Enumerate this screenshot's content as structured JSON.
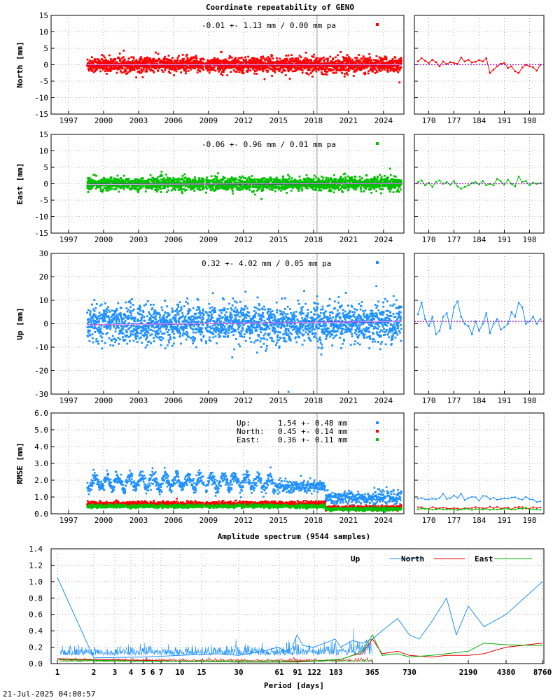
{
  "title": "Coordinate repeatability of GENO",
  "timestamp": "21-Jul-2025 04:00:57",
  "years": [
    "1997",
    "2000",
    "2003",
    "2006",
    "2009",
    "2012",
    "2015",
    "2018",
    "2021",
    "2024"
  ],
  "doys": [
    "170",
    "177",
    "184",
    "191",
    "198"
  ],
  "chart_data": [
    {
      "type": "scatter",
      "ylabel": "North [mm]",
      "ylim": [
        -15,
        15
      ],
      "yticks": [
        -15,
        -10,
        -5,
        0,
        5,
        10,
        15
      ],
      "stats": "-0.01 +- 1.13 mm /  0.00 mm pa",
      "color": "#ff0000",
      "start_year": 1998.6,
      "end_year": 2025.55,
      "sigma": 1.13,
      "trend": [
        [
          1998.6,
          -0.01
        ],
        [
          2025.55,
          -0.01
        ]
      ],
      "recent": {
        "doy": [
          167,
          168,
          169,
          170,
          171,
          172,
          173,
          174,
          175,
          176,
          177,
          178,
          179,
          180,
          181,
          182,
          183,
          184,
          185,
          186,
          187,
          188,
          189,
          190,
          191,
          192,
          193,
          194,
          195,
          196,
          197,
          198,
          199,
          200,
          201
        ],
        "values": [
          1.0,
          2.0,
          1.2,
          0.5,
          1.5,
          0.8,
          -0.5,
          1.0,
          0.2,
          0.8,
          0.5,
          0.3,
          2.2,
          1.0,
          1.5,
          0.7,
          0.9,
          1.4,
          1.0,
          2.0,
          -2.5,
          -1.5,
          -0.5,
          0.3,
          0.5,
          -1.0,
          -0.5,
          -2.0,
          -2.5,
          -0.8,
          0.0,
          -0.5,
          -0.8,
          -1.8,
          0.0
        ],
        "trend": 0.0
      }
    },
    {
      "type": "scatter",
      "ylabel": "East [mm]",
      "ylim": [
        -15,
        15
      ],
      "yticks": [
        -15,
        -10,
        -5,
        0,
        5,
        10,
        15
      ],
      "stats": "-0.06 +- 0.96 mm /  0.01 mm pa",
      "color": "#00c000",
      "start_year": 1998.6,
      "end_year": 2025.55,
      "sigma": 0.96,
      "trend": [
        [
          1998.6,
          -0.2
        ],
        [
          2025.55,
          0.1
        ]
      ],
      "recent": {
        "doy": [
          167,
          168,
          169,
          170,
          171,
          172,
          173,
          174,
          175,
          176,
          177,
          178,
          179,
          180,
          181,
          182,
          183,
          184,
          185,
          186,
          187,
          188,
          189,
          190,
          191,
          192,
          193,
          194,
          195,
          196,
          197,
          198,
          199,
          200,
          201
        ],
        "values": [
          0.5,
          1.0,
          -0.5,
          0.3,
          -1.0,
          0.5,
          1.0,
          0.0,
          0.5,
          -0.3,
          0.8,
          -0.8,
          -1.5,
          -1.0,
          -0.5,
          0.2,
          0.5,
          -0.2,
          0.8,
          -0.5,
          0.0,
          -0.5,
          1.5,
          0.8,
          -0.3,
          1.2,
          0.0,
          -0.8,
          2.2,
          0.5,
          0.8,
          -0.5,
          0.3,
          0.0,
          0.2
        ],
        "trend": 0.0
      }
    },
    {
      "type": "scatter",
      "ylabel": "Up [mm]",
      "ylim": [
        -30,
        30
      ],
      "yticks": [
        -30,
        -20,
        -10,
        0,
        10,
        20,
        30
      ],
      "stats": " 0.32 +- 4.02 mm /  0.05 mm pa",
      "color": "#1e90ff",
      "start_year": 1998.6,
      "end_year": 2025.55,
      "sigma": 4.02,
      "trend": [
        [
          1998.6,
          -0.5
        ],
        [
          2025.55,
          1.0
        ]
      ],
      "recent": {
        "doy": [
          167,
          168,
          169,
          170,
          171,
          172,
          173,
          174,
          175,
          176,
          177,
          178,
          179,
          180,
          181,
          182,
          183,
          184,
          185,
          186,
          187,
          188,
          189,
          190,
          191,
          192,
          193,
          194,
          195,
          196,
          197,
          198,
          199,
          200,
          201
        ],
        "values": [
          4.0,
          9.0,
          2.0,
          -1.0,
          3.0,
          -4.5,
          -3.0,
          3.0,
          4.5,
          -2.0,
          7.0,
          9.5,
          3.0,
          0.0,
          -1.0,
          -4.5,
          1.0,
          -3.0,
          0.0,
          4.5,
          -4.0,
          0.0,
          2.0,
          -2.5,
          -1.5,
          0.0,
          5.0,
          3.0,
          9.0,
          7.0,
          0.0,
          1.0,
          3.0,
          0.0,
          2.0
        ],
        "trend": 1.0
      }
    },
    {
      "type": "scatter",
      "ylabel": "RMSE [mm]",
      "ylim": [
        0,
        6
      ],
      "yticks": [
        "0.0",
        "1.0",
        "2.0",
        "3.0",
        "4.0",
        "5.0",
        "6.0"
      ],
      "legend": [
        {
          "label": "Up:",
          "value": "1.54 +- 0.48 mm",
          "color": "#1e90ff"
        },
        {
          "label": "North:",
          "value": "0.45 +- 0.14 mm",
          "color": "#ff0000"
        },
        {
          "label": "East:",
          "value": "0.36 +- 0.11 mm",
          "color": "#00c000"
        }
      ]
    },
    {
      "type": "line",
      "title": "Amplitude spectrum (9544 samples)",
      "xlabel": "Period [days]",
      "xscale": "reciprocal",
      "xticks": [
        "1",
        "2",
        "3",
        "4",
        "5",
        "6",
        "7",
        "10",
        "15",
        "30",
        "61",
        "91",
        "122",
        "183",
        "365",
        "730",
        "2190",
        "4380",
        "8760"
      ],
      "ylim": [
        0,
        1.4
      ],
      "yticks": [
        "0.0",
        "0.2",
        "0.4",
        "0.6",
        "0.8",
        "1.0",
        "1.2",
        "1.4"
      ],
      "series": [
        {
          "name": "Up",
          "color": "#1e90ff",
          "period": [
            8760,
            4380,
            2920,
            2190,
            1752,
            1460,
            1095,
            876,
            730,
            584,
            438,
            365,
            300,
            250,
            200,
            180,
            150,
            120,
            100,
            90,
            80,
            70,
            60,
            45,
            30,
            20,
            10,
            5,
            2,
            1
          ],
          "values": [
            1.0,
            0.6,
            0.45,
            0.7,
            0.35,
            0.8,
            0.5,
            0.3,
            0.35,
            0.55,
            0.4,
            0.3,
            0.25,
            0.28,
            0.2,
            0.3,
            0.25,
            0.2,
            0.22,
            0.35,
            0.18,
            0.15,
            0.2,
            0.15,
            0.1,
            0.12,
            0.1,
            0.08,
            0.07,
            1.05
          ]
        },
        {
          "name": "North",
          "color": "#e00000",
          "period": [
            8760,
            4380,
            2920,
            2190,
            1460,
            1095,
            730,
            584,
            438,
            365,
            300,
            250,
            200,
            150,
            120,
            90,
            60,
            30,
            10,
            5,
            2,
            1
          ],
          "values": [
            0.25,
            0.2,
            0.12,
            0.1,
            0.1,
            0.08,
            0.1,
            0.15,
            0.12,
            0.3,
            0.12,
            0.1,
            0.05,
            0.04,
            0.03,
            0.03,
            0.02,
            0.02,
            0.03,
            0.04,
            0.05,
            0.06
          ]
        },
        {
          "name": "East",
          "color": "#00b000",
          "period": [
            8760,
            4380,
            2920,
            2190,
            1460,
            1095,
            730,
            584,
            438,
            365,
            300,
            250,
            200,
            150,
            120,
            90,
            60,
            30,
            10,
            5,
            2,
            1
          ],
          "values": [
            0.22,
            0.23,
            0.25,
            0.15,
            0.12,
            0.1,
            0.08,
            0.12,
            0.1,
            0.35,
            0.15,
            0.1,
            0.05,
            0.04,
            0.03,
            0.02,
            0.02,
            0.02,
            0.03,
            0.03,
            0.04,
            0.05
          ]
        }
      ]
    }
  ]
}
